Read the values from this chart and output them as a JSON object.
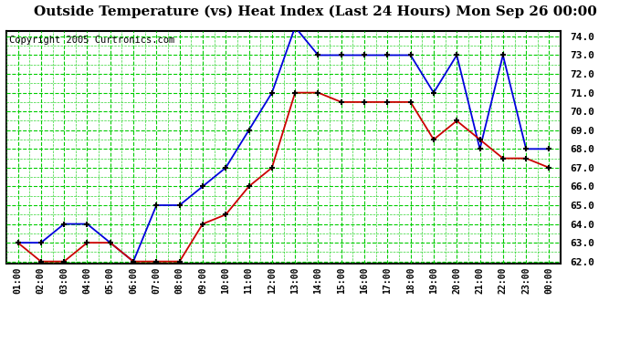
{
  "title": "Outside Temperature (vs) Heat Index (Last 24 Hours) Mon Sep 26 00:00",
  "copyright": "Copyright 2005 Curtronics.com",
  "x_labels": [
    "01:00",
    "02:00",
    "03:00",
    "04:00",
    "05:00",
    "06:00",
    "07:00",
    "08:00",
    "09:00",
    "10:00",
    "11:00",
    "12:00",
    "13:00",
    "14:00",
    "15:00",
    "16:00",
    "17:00",
    "18:00",
    "19:00",
    "20:00",
    "21:00",
    "22:00",
    "23:00",
    "00:00"
  ],
  "blue_data": [
    63.0,
    63.0,
    64.0,
    64.0,
    63.0,
    62.0,
    65.0,
    65.0,
    66.0,
    67.0,
    69.0,
    71.0,
    74.5,
    73.0,
    73.0,
    73.0,
    73.0,
    73.0,
    71.0,
    73.0,
    68.0,
    73.0,
    68.0,
    68.0
  ],
  "red_data": [
    63.0,
    62.0,
    62.0,
    63.0,
    63.0,
    62.0,
    62.0,
    62.0,
    64.0,
    64.5,
    66.0,
    67.0,
    71.0,
    71.0,
    70.5,
    70.5,
    70.5,
    70.5,
    68.5,
    69.5,
    68.5,
    67.5,
    67.5,
    67.0
  ],
  "ylim_min": 62.0,
  "ylim_max": 74.0,
  "y_ticks": [
    62.0,
    63.0,
    64.0,
    65.0,
    66.0,
    67.0,
    68.0,
    69.0,
    70.0,
    71.0,
    72.0,
    73.0,
    74.0
  ],
  "blue_color": "#0000dd",
  "red_color": "#cc0000",
  "grid_color": "#00cc00",
  "bg_color": "#ffffff",
  "title_fontsize": 11,
  "copyright_fontsize": 7.5
}
